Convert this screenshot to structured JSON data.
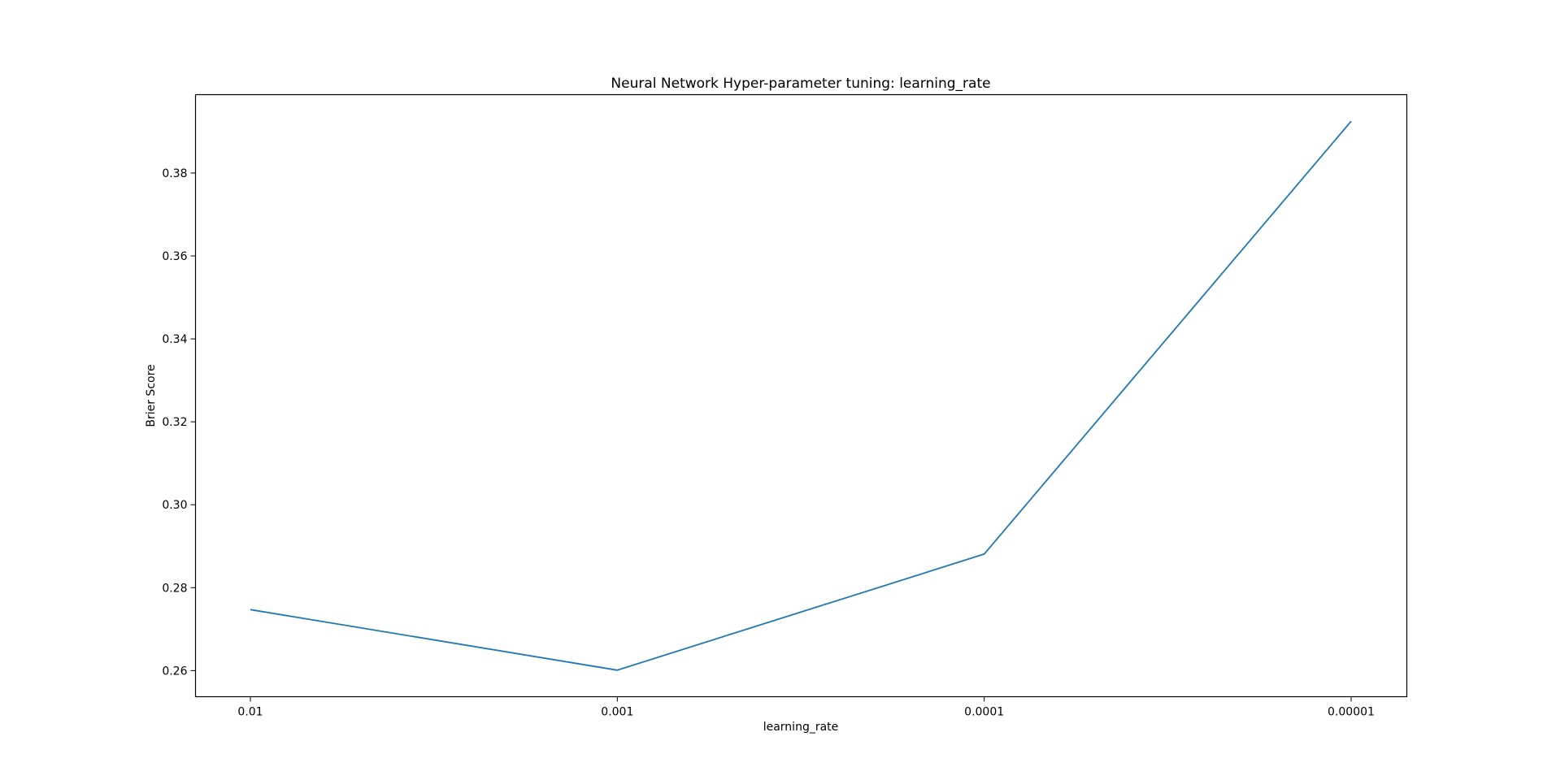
{
  "chart_data": {
    "type": "line",
    "title": "Neural Network Hyper-parameter tuning: learning_rate",
    "xlabel": "learning_rate",
    "ylabel": "Brier Score",
    "categories": [
      "0.01",
      "0.001",
      "0.0001",
      "0.00001"
    ],
    "series": [
      {
        "values": [
          0.2747,
          0.2601,
          0.2881,
          0.3925
        ]
      }
    ],
    "yticks": [
      0.26,
      0.28,
      0.3,
      0.32,
      0.34,
      0.36,
      0.38
    ],
    "ytick_labels": [
      "0.26",
      "0.28",
      "0.30",
      "0.32",
      "0.34",
      "0.36",
      "0.38"
    ],
    "ylim": [
      0.2537,
      0.3989
    ],
    "grid": false,
    "colors": {
      "line": "#1f77b4",
      "axes": "#000000"
    }
  }
}
